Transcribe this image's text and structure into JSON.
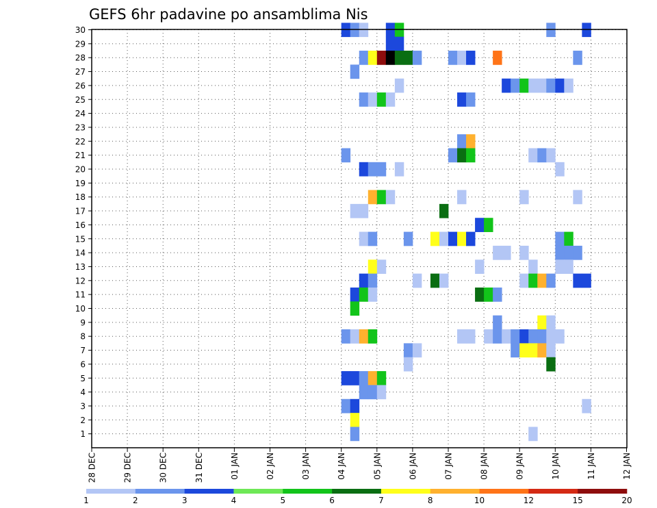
{
  "chart_data": {
    "type": "heatmap",
    "title": "GEFS 6hr padavine po ansamblima Nis",
    "xlabel": "",
    "ylabel": "",
    "x_ticks": [
      "28 DEC",
      "29 DEC",
      "30 DEC",
      "31 DEC",
      "01 JAN",
      "02 JAN",
      "03 JAN",
      "04 JAN",
      "05 JAN",
      "06 JAN",
      "07 JAN",
      "08 JAN",
      "09 JAN",
      "10 JAN",
      "11 JAN",
      "12 JAN"
    ],
    "y_ticks": [
      "1",
      "2",
      "3",
      "4",
      "5",
      "6",
      "7",
      "8",
      "9",
      "10",
      "11",
      "12",
      "13",
      "14",
      "15",
      "16",
      "17",
      "18",
      "19",
      "20",
      "21",
      "22",
      "23",
      "24",
      "25",
      "26",
      "27",
      "28",
      "29",
      "30"
    ],
    "x_unit": "6-hour step from 28 DEC 00Z",
    "ylim": [
      0,
      30
    ],
    "grid": true,
    "colorbar": {
      "labels": [
        "1",
        "2",
        "3",
        "4",
        "5",
        "6",
        "7",
        "8",
        "10",
        "12",
        "15",
        "20"
      ],
      "colors": [
        "#b3c6f5",
        "#6b95ec",
        "#1c48dc",
        "#6ee856",
        "#12c41a",
        "#0a6e12",
        "#ffff1a",
        "#ffb12e",
        "#ff7418",
        "#d42a14",
        "#8e0d0d"
      ]
    },
    "cells": [
      [
        28,
        30,
        3
      ],
      [
        29,
        30,
        2
      ],
      [
        30,
        30,
        1
      ],
      [
        33,
        30,
        3
      ],
      [
        34,
        30,
        5
      ],
      [
        51,
        30,
        2
      ],
      [
        55,
        30,
        3
      ],
      [
        33,
        29,
        3
      ],
      [
        34,
        29,
        3
      ],
      [
        30,
        28,
        2
      ],
      [
        31,
        28,
        7
      ],
      [
        32,
        28,
        11
      ],
      [
        33,
        28,
        12
      ],
      [
        34,
        28,
        6
      ],
      [
        35,
        28,
        6
      ],
      [
        36,
        28,
        2
      ],
      [
        40,
        28,
        2
      ],
      [
        41,
        28,
        1
      ],
      [
        42,
        28,
        3
      ],
      [
        45,
        28,
        9
      ],
      [
        54,
        28,
        2
      ],
      [
        29,
        27,
        2
      ],
      [
        34,
        26,
        1
      ],
      [
        46,
        26,
        3
      ],
      [
        47,
        26,
        2
      ],
      [
        48,
        26,
        5
      ],
      [
        49,
        26,
        1
      ],
      [
        50,
        26,
        1
      ],
      [
        51,
        26,
        2
      ],
      [
        52,
        26,
        3
      ],
      [
        53,
        26,
        1
      ],
      [
        30,
        25,
        2
      ],
      [
        31,
        25,
        1
      ],
      [
        32,
        25,
        5
      ],
      [
        33,
        25,
        1
      ],
      [
        41,
        25,
        3
      ],
      [
        42,
        25,
        2
      ],
      [
        41,
        22,
        2
      ],
      [
        42,
        22,
        8
      ],
      [
        28,
        21,
        2
      ],
      [
        40,
        21,
        2
      ],
      [
        41,
        21,
        6
      ],
      [
        42,
        21,
        5
      ],
      [
        49,
        21,
        1
      ],
      [
        50,
        21,
        2
      ],
      [
        51,
        21,
        1
      ],
      [
        30,
        20,
        3
      ],
      [
        31,
        20,
        2
      ],
      [
        32,
        20,
        2
      ],
      [
        34,
        20,
        1
      ],
      [
        52,
        20,
        1
      ],
      [
        31,
        18,
        8
      ],
      [
        32,
        18,
        5
      ],
      [
        33,
        18,
        1
      ],
      [
        41,
        18,
        1
      ],
      [
        48,
        18,
        1
      ],
      [
        54,
        18,
        1
      ],
      [
        29,
        17,
        1
      ],
      [
        30,
        17,
        1
      ],
      [
        39,
        17,
        6
      ],
      [
        43,
        16,
        3
      ],
      [
        44,
        16,
        5
      ],
      [
        30,
        15,
        1
      ],
      [
        31,
        15,
        2
      ],
      [
        35,
        15,
        2
      ],
      [
        38,
        15,
        7
      ],
      [
        39,
        15,
        1
      ],
      [
        40,
        15,
        3
      ],
      [
        41,
        15,
        7
      ],
      [
        42,
        15,
        3
      ],
      [
        52,
        15,
        2
      ],
      [
        53,
        15,
        5
      ],
      [
        45,
        14,
        1
      ],
      [
        46,
        14,
        1
      ],
      [
        48,
        14,
        1
      ],
      [
        52,
        14,
        2
      ],
      [
        53,
        14,
        2
      ],
      [
        54,
        14,
        2
      ],
      [
        31,
        13,
        7
      ],
      [
        32,
        13,
        1
      ],
      [
        43,
        13,
        1
      ],
      [
        49,
        13,
        1
      ],
      [
        52,
        13,
        1
      ],
      [
        53,
        13,
        1
      ],
      [
        30,
        12,
        3
      ],
      [
        31,
        12,
        2
      ],
      [
        36,
        12,
        1
      ],
      [
        38,
        12,
        6
      ],
      [
        39,
        12,
        1
      ],
      [
        48,
        12,
        1
      ],
      [
        49,
        12,
        5
      ],
      [
        50,
        12,
        8
      ],
      [
        51,
        12,
        2
      ],
      [
        54,
        12,
        3
      ],
      [
        55,
        12,
        3
      ],
      [
        29,
        11,
        3
      ],
      [
        30,
        11,
        5
      ],
      [
        31,
        11,
        1
      ],
      [
        43,
        11,
        6
      ],
      [
        44,
        11,
        5
      ],
      [
        45,
        11,
        2
      ],
      [
        29,
        10,
        5
      ],
      [
        45,
        9,
        2
      ],
      [
        50,
        9,
        7
      ],
      [
        51,
        9,
        1
      ],
      [
        28,
        8,
        2
      ],
      [
        29,
        8,
        1
      ],
      [
        30,
        8,
        8
      ],
      [
        31,
        8,
        5
      ],
      [
        41,
        8,
        1
      ],
      [
        42,
        8,
        1
      ],
      [
        44,
        8,
        1
      ],
      [
        45,
        8,
        2
      ],
      [
        46,
        8,
        1
      ],
      [
        47,
        8,
        2
      ],
      [
        48,
        8,
        3
      ],
      [
        49,
        8,
        2
      ],
      [
        50,
        8,
        2
      ],
      [
        51,
        8,
        1
      ],
      [
        52,
        8,
        1
      ],
      [
        35,
        7,
        2
      ],
      [
        36,
        7,
        1
      ],
      [
        47,
        7,
        2
      ],
      [
        48,
        7,
        7
      ],
      [
        49,
        7,
        7
      ],
      [
        50,
        7,
        8
      ],
      [
        51,
        7,
        1
      ],
      [
        35,
        6,
        1
      ],
      [
        51,
        6,
        6
      ],
      [
        28,
        5,
        3
      ],
      [
        29,
        5,
        3
      ],
      [
        30,
        5,
        2
      ],
      [
        31,
        5,
        8
      ],
      [
        32,
        5,
        5
      ],
      [
        30,
        4,
        2
      ],
      [
        31,
        4,
        2
      ],
      [
        32,
        4,
        1
      ],
      [
        28,
        3,
        2
      ],
      [
        29,
        3,
        3
      ],
      [
        55,
        3,
        1
      ],
      [
        29,
        2,
        7
      ],
      [
        29,
        1,
        2
      ],
      [
        49,
        1,
        1
      ]
    ]
  }
}
